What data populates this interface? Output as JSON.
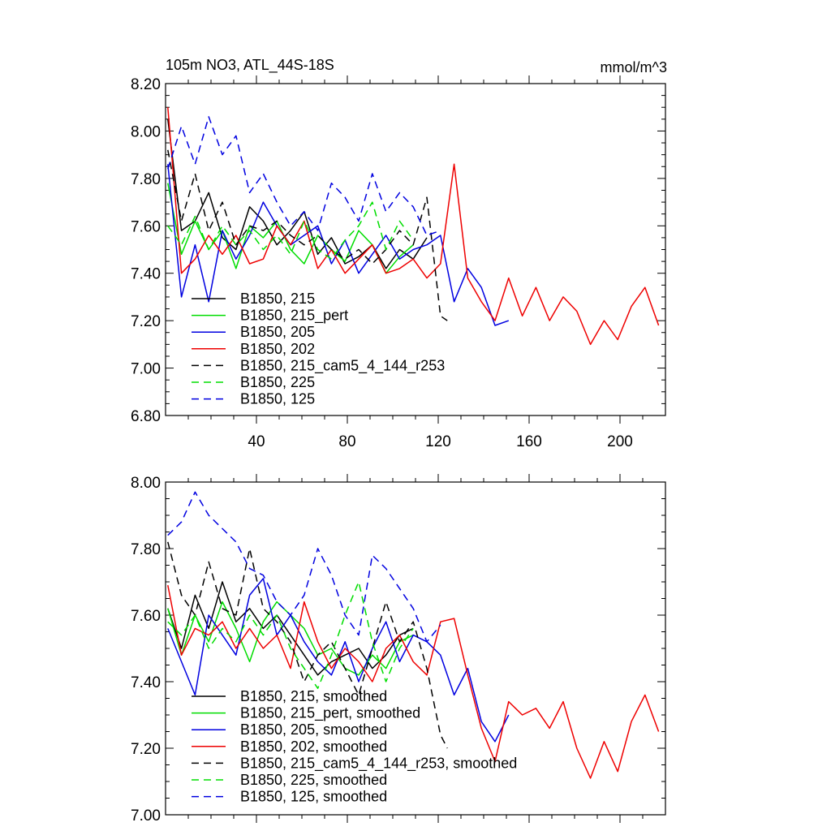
{
  "chart_data": [
    {
      "type": "line",
      "title": "105m NO3, ATL_44S-18S",
      "units": "mmol/m^3",
      "xlim": [
        0,
        220
      ],
      "ylim": [
        6.8,
        8.2
      ],
      "xticks": [
        40,
        80,
        120,
        160,
        200
      ],
      "xtick_labels": [
        "40",
        "80",
        "120",
        "160",
        "200"
      ],
      "yticks": [
        6.8,
        7.0,
        7.2,
        7.4,
        7.6,
        7.8,
        8.0,
        8.2
      ],
      "ytick_labels": [
        "6.80",
        "7.00",
        "7.20",
        "7.40",
        "7.60",
        "7.80",
        "8.00",
        "8.20"
      ],
      "legend_position": "bottom-left",
      "series": [
        {
          "name": "B1850, 215",
          "color": "#000000",
          "dashed": false,
          "x": [
            1,
            7,
            13,
            19,
            25,
            31,
            37,
            43,
            49,
            55,
            61,
            67,
            73,
            79,
            85,
            91,
            97,
            103,
            109,
            115
          ],
          "values": [
            8.05,
            7.58,
            7.62,
            7.74,
            7.55,
            7.5,
            7.68,
            7.62,
            7.52,
            7.58,
            7.66,
            7.48,
            7.55,
            7.44,
            7.47,
            7.52,
            7.42,
            7.5,
            7.46,
            7.55
          ]
        },
        {
          "name": "B1850, 215_pert",
          "color": "#00dd00",
          "dashed": false,
          "x": [
            1,
            7,
            13,
            19,
            25,
            31,
            37,
            43,
            49,
            55,
            61,
            67,
            73,
            79,
            85,
            91,
            97,
            103,
            109
          ],
          "values": [
            7.78,
            7.48,
            7.62,
            7.5,
            7.58,
            7.42,
            7.6,
            7.55,
            7.62,
            7.5,
            7.44,
            7.56,
            7.5,
            7.45,
            7.58,
            7.52,
            7.4,
            7.47,
            7.52
          ]
        },
        {
          "name": "B1850, 205",
          "color": "#0000e0",
          "dashed": false,
          "x": [
            1,
            7,
            13,
            19,
            25,
            31,
            37,
            43,
            49,
            55,
            61,
            67,
            73,
            79,
            85,
            91,
            97,
            103,
            109,
            115,
            121,
            127,
            133,
            139,
            145,
            151
          ],
          "values": [
            7.86,
            7.3,
            7.52,
            7.28,
            7.58,
            7.46,
            7.56,
            7.7,
            7.6,
            7.52,
            7.56,
            7.6,
            7.44,
            7.54,
            7.4,
            7.48,
            7.56,
            7.46,
            7.5,
            7.52,
            7.56,
            7.28,
            7.42,
            7.34,
            7.18,
            7.2
          ]
        },
        {
          "name": "B1850, 202",
          "color": "#ee0000",
          "dashed": false,
          "x": [
            1,
            7,
            13,
            19,
            25,
            31,
            37,
            43,
            49,
            55,
            61,
            67,
            73,
            79,
            85,
            91,
            97,
            103,
            109,
            115,
            121,
            127,
            133,
            139,
            145,
            151,
            157,
            163,
            169,
            175,
            181,
            187,
            193,
            199,
            205,
            211,
            217
          ],
          "values": [
            8.1,
            7.4,
            7.46,
            7.56,
            7.48,
            7.56,
            7.44,
            7.46,
            7.6,
            7.52,
            7.62,
            7.42,
            7.5,
            7.4,
            7.46,
            7.52,
            7.4,
            7.42,
            7.46,
            7.38,
            7.44,
            7.86,
            7.38,
            7.28,
            7.2,
            7.38,
            7.22,
            7.34,
            7.2,
            7.3,
            7.24,
            7.1,
            7.2,
            7.12,
            7.26,
            7.34,
            7.18
          ]
        },
        {
          "name": "B1850, 215_cam5_4_144_r253",
          "color": "#000000",
          "dashed": true,
          "x": [
            1,
            7,
            13,
            19,
            25,
            31,
            37,
            43,
            49,
            55,
            61,
            67,
            73,
            79,
            85,
            91,
            97,
            103,
            109,
            115,
            121,
            124
          ],
          "values": [
            7.92,
            7.62,
            7.82,
            7.58,
            7.7,
            7.52,
            7.6,
            7.58,
            7.62,
            7.56,
            7.52,
            7.56,
            7.5,
            7.46,
            7.5,
            7.44,
            7.5,
            7.58,
            7.52,
            7.72,
            7.22,
            7.2
          ]
        },
        {
          "name": "B1850, 225",
          "color": "#00dd00",
          "dashed": true,
          "x": [
            1,
            7,
            13,
            19,
            25,
            31,
            37,
            43,
            49,
            55,
            61,
            67,
            73,
            79,
            85,
            91,
            97,
            103,
            109
          ],
          "values": [
            7.6,
            7.52,
            7.64,
            7.5,
            7.6,
            7.52,
            7.58,
            7.5,
            7.56,
            7.48,
            7.62,
            7.5,
            7.46,
            7.54,
            7.6,
            7.7,
            7.5,
            7.62,
            7.54
          ]
        },
        {
          "name": "B1850, 125",
          "color": "#0000e0",
          "dashed": true,
          "x": [
            1,
            7,
            13,
            19,
            25,
            31,
            37,
            43,
            49,
            55,
            61,
            67,
            73,
            79,
            85,
            91,
            97,
            103,
            109,
            115,
            121
          ],
          "values": [
            7.84,
            8.02,
            7.86,
            8.06,
            7.9,
            7.98,
            7.74,
            7.82,
            7.7,
            7.6,
            7.66,
            7.58,
            7.78,
            7.72,
            7.62,
            7.82,
            7.66,
            7.74,
            7.68,
            7.56,
            7.58
          ]
        }
      ]
    },
    {
      "type": "line",
      "xlim": [
        0,
        220
      ],
      "ylim": [
        7.0,
        8.0
      ],
      "xticks": [
        40,
        80,
        120,
        160,
        200
      ],
      "yticks": [
        7.0,
        7.2,
        7.4,
        7.6,
        7.8,
        8.0
      ],
      "ytick_labels": [
        "7.00",
        "7.20",
        "7.40",
        "7.60",
        "7.80",
        "8.00"
      ],
      "legend_position": "bottom-left",
      "series": [
        {
          "name": "B1850, 215, smoothed",
          "color": "#000000",
          "dashed": false,
          "x": [
            1,
            7,
            13,
            19,
            25,
            31,
            37,
            43,
            49,
            55,
            61,
            67,
            73,
            79,
            85,
            91,
            97,
            103,
            109
          ],
          "values": [
            7.62,
            7.5,
            7.66,
            7.56,
            7.7,
            7.58,
            7.62,
            7.56,
            7.6,
            7.54,
            7.48,
            7.42,
            7.46,
            7.48,
            7.5,
            7.44,
            7.48,
            7.54,
            7.56
          ]
        },
        {
          "name": "B1850, 215_pert, smoothed",
          "color": "#00dd00",
          "dashed": false,
          "x": [
            1,
            7,
            13,
            19,
            25,
            31,
            37,
            43,
            49,
            55,
            61,
            67,
            73,
            79,
            85,
            91,
            97,
            103,
            109
          ],
          "values": [
            7.62,
            7.48,
            7.6,
            7.52,
            7.64,
            7.56,
            7.46,
            7.58,
            7.64,
            7.6,
            7.56,
            7.48,
            7.5,
            7.44,
            7.42,
            7.48,
            7.44,
            7.52,
            7.54
          ]
        },
        {
          "name": "B1850, 205, smoothed",
          "color": "#0000e0",
          "dashed": false,
          "x": [
            1,
            7,
            13,
            19,
            25,
            31,
            37,
            43,
            49,
            55,
            61,
            67,
            73,
            79,
            85,
            91,
            97,
            103,
            109,
            115,
            121,
            127,
            133,
            139,
            145,
            151
          ],
          "values": [
            7.56,
            7.46,
            7.36,
            7.6,
            7.54,
            7.48,
            7.66,
            7.71,
            7.54,
            7.6,
            7.52,
            7.46,
            7.42,
            7.52,
            7.4,
            7.5,
            7.58,
            7.46,
            7.54,
            7.52,
            7.48,
            7.36,
            7.44,
            7.28,
            7.22,
            7.3
          ]
        },
        {
          "name": "B1850, 202, smoothed",
          "color": "#ee0000",
          "dashed": false,
          "x": [
            1,
            7,
            13,
            19,
            25,
            31,
            37,
            43,
            49,
            55,
            61,
            67,
            73,
            79,
            85,
            91,
            97,
            103,
            109,
            115,
            121,
            127,
            133,
            139,
            145,
            151,
            157,
            163,
            169,
            175,
            181,
            187,
            193,
            199,
            205,
            211,
            217
          ],
          "values": [
            7.69,
            7.48,
            7.56,
            7.54,
            7.58,
            7.5,
            7.56,
            7.5,
            7.54,
            7.44,
            7.64,
            7.52,
            7.44,
            7.5,
            7.46,
            7.4,
            7.5,
            7.54,
            7.46,
            7.42,
            7.58,
            7.59,
            7.42,
            7.26,
            7.16,
            7.34,
            7.3,
            7.32,
            7.26,
            7.34,
            7.2,
            7.11,
            7.22,
            7.13,
            7.28,
            7.36,
            7.25
          ]
        },
        {
          "name": "B1850, 215_cam5_4_144_r253, smoothed",
          "color": "#000000",
          "dashed": true,
          "x": [
            1,
            7,
            13,
            19,
            25,
            31,
            37,
            43,
            49,
            55,
            61,
            67,
            73,
            79,
            85,
            91,
            97,
            103,
            109,
            115,
            121,
            124
          ],
          "values": [
            7.82,
            7.66,
            7.6,
            7.76,
            7.62,
            7.6,
            7.8,
            7.62,
            7.58,
            7.52,
            7.4,
            7.48,
            7.52,
            7.44,
            7.36,
            7.5,
            7.64,
            7.52,
            7.58,
            7.44,
            7.24,
            7.2
          ]
        },
        {
          "name": "B1850, 225, smoothed",
          "color": "#00dd00",
          "dashed": true,
          "x": [
            1,
            7,
            13,
            19,
            25,
            31,
            37,
            43,
            49,
            55,
            61,
            67,
            73,
            79,
            85,
            91,
            97,
            103,
            109
          ],
          "values": [
            7.58,
            7.54,
            7.6,
            7.5,
            7.56,
            7.52,
            7.6,
            7.54,
            7.6,
            7.5,
            7.44,
            7.38,
            7.48,
            7.6,
            7.7,
            7.52,
            7.4,
            7.5,
            7.56
          ]
        },
        {
          "name": "B1850, 125, smoothed",
          "color": "#0000e0",
          "dashed": true,
          "x": [
            1,
            7,
            13,
            19,
            25,
            31,
            37,
            43,
            49,
            55,
            61,
            67,
            73,
            79,
            85,
            91,
            97,
            103,
            109,
            115,
            121
          ],
          "values": [
            7.84,
            7.88,
            7.97,
            7.9,
            7.86,
            7.82,
            7.74,
            7.72,
            7.64,
            7.6,
            7.66,
            7.8,
            7.72,
            7.6,
            7.54,
            7.78,
            7.74,
            7.68,
            7.62,
            7.52,
            7.57
          ]
        }
      ]
    }
  ]
}
